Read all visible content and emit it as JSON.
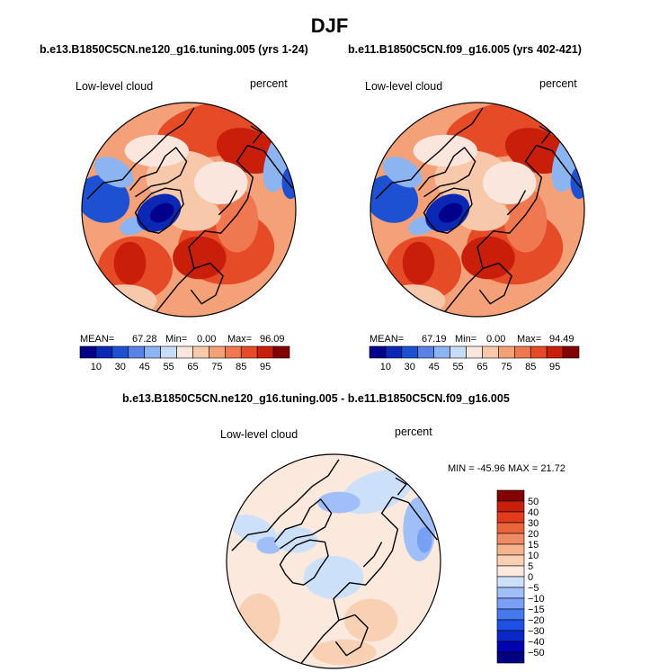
{
  "figure_title": "DJF",
  "colors": {
    "abs_scale": [
      "#00008c",
      "#0a28b4",
      "#1e50d2",
      "#5a82e6",
      "#8cb4f0",
      "#c8dcf8",
      "#fae6dc",
      "#f8c8aa",
      "#f4a078",
      "#f07850",
      "#e64b28",
      "#c81e0a",
      "#820000"
    ],
    "diff_scale": [
      "#000080",
      "#0000b4",
      "#0a28c8",
      "#1e50e6",
      "#4678f0",
      "#78a0f5",
      "#a0bef8",
      "#cde0fa",
      "#fae9dc",
      "#f8d0b4",
      "#f5b48c",
      "#f08c64",
      "#ea643c",
      "#e13c1e",
      "#c81e0a",
      "#820000"
    ],
    "coast": "#000000",
    "frame": "#000000"
  },
  "chart_data": [
    {
      "type": "heatmap",
      "projection": "polar stereographic (north pole)",
      "title": "b.e13.B1850C5CN.ne120_g16.tuning.005 (yrs 1-24)",
      "left_label": "Low-level cloud",
      "right_label": "percent",
      "stats": {
        "mean_label": "MEAN=",
        "mean": "67.28",
        "min_label": "Min=",
        "min": "0.00",
        "max_label": "Max=",
        "max": "96.09"
      },
      "colorbar_ticks": [
        "10",
        "30",
        "45",
        "55",
        "65",
        "75",
        "85",
        "95"
      ]
    },
    {
      "type": "heatmap",
      "projection": "polar stereographic (north pole)",
      "title": "b.e11.B1850C5CN.f09_g16.005 (yrs 402-421)",
      "left_label": "Low-level cloud",
      "right_label": "percent",
      "stats": {
        "mean_label": "MEAN=",
        "mean": "67.19",
        "min_label": "Min=",
        "min": "0.00",
        "max_label": "Max=",
        "max": "94.49"
      },
      "colorbar_ticks": [
        "10",
        "30",
        "45",
        "55",
        "65",
        "75",
        "85",
        "95"
      ]
    },
    {
      "type": "heatmap",
      "projection": "polar stereographic (north pole)",
      "title": "b.e13.B1850C5CN.ne120_g16.tuning.005 - b.e11.B1850C5CN.f09_g16.005",
      "left_label": "Low-level cloud",
      "right_label": "percent",
      "stats_text": "MIN = -45.96 MAX =  21.72",
      "colorbar_ticks": [
        "50",
        "40",
        "30",
        "20",
        "15",
        "10",
        "5",
        "0",
        "−5",
        "−10",
        "−15",
        "−20",
        "−30",
        "−40",
        "−50"
      ]
    }
  ]
}
